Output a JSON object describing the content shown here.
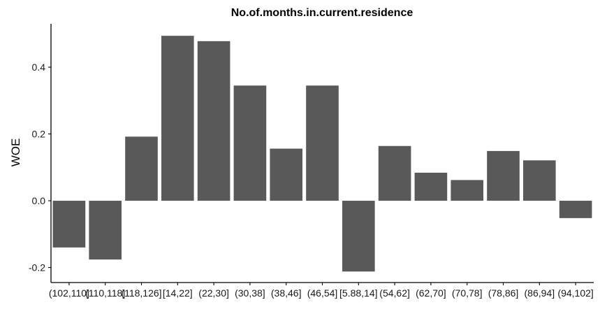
{
  "chart_data": {
    "type": "bar",
    "title": "No.of.months.in.current.residence",
    "xlabel": "",
    "ylabel": "WOE",
    "categories": [
      "(102,110]",
      "(110,118]",
      "(118,126]",
      "[14,22]",
      "(22,30]",
      "(30,38]",
      "(38,46]",
      "(46,54]",
      "[5.88,14]",
      "(54,62]",
      "(62,70]",
      "(70,78]",
      "(78,86]",
      "(86,94]",
      "(94,102]"
    ],
    "values": [
      -0.14,
      -0.176,
      0.192,
      0.494,
      0.478,
      0.345,
      0.156,
      0.345,
      -0.212,
      0.164,
      0.084,
      0.062,
      0.149,
      0.121,
      -0.052
    ],
    "ylim": [
      -0.245,
      0.53
    ],
    "yticks": [
      -0.2,
      0.0,
      0.2,
      0.4
    ],
    "ytick_labels": [
      "-0.2",
      "0.0",
      "0.2",
      "0.4"
    ],
    "grid": false,
    "legend": "none",
    "bar_color": "#595959"
  }
}
